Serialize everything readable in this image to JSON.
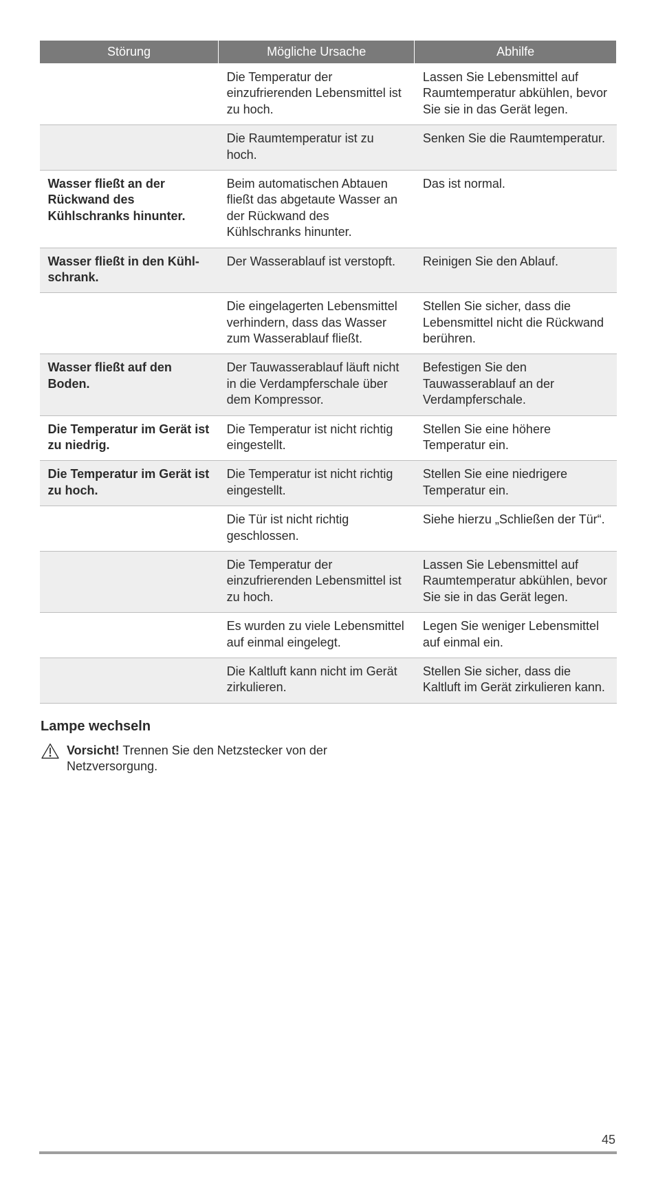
{
  "table": {
    "headers": [
      "Störung",
      "Mögliche Ursache",
      "Abhilfe"
    ],
    "rows": [
      {
        "striped": false,
        "cells": [
          "",
          "Die Temperatur der einzufrierenden Lebensmittel ist zu hoch.",
          "Lassen Sie Lebensmittel auf Raumtem­peratur abkühlen, bevor Sie sie in das Gerät legen."
        ]
      },
      {
        "striped": true,
        "cells": [
          "",
          "Die Raumtemperatur ist zu hoch.",
          "Senken Sie die Raumtemperatur."
        ]
      },
      {
        "striped": false,
        "bold0": true,
        "cells": [
          "Wasser fließt an der Rückwand des Kühlschranks hinunter.",
          "Beim automatischen Abtauen fließt das abgetaute Wasser an der Rückwand des Kühlschranks hinunter.",
          "Das ist normal."
        ]
      },
      {
        "striped": true,
        "bold0": true,
        "cells": [
          "Wasser fließt in den Kühl­schrank.",
          "Der Wasserablauf ist verstopft.",
          "Reinigen Sie den Ablauf."
        ]
      },
      {
        "striped": false,
        "cells": [
          "",
          "Die eingelagerten Lebensmittel verhin­dern, dass das Wasser zum Wasserab­lauf fließt.",
          "Stellen Sie sicher, dass die Lebensmittel nicht die Rückwand berühren."
        ]
      },
      {
        "striped": true,
        "bold0": true,
        "cells": [
          "Wasser fließt auf den Boden.",
          "Der Tauwasserablauf läuft nicht in die Verdampferschale über dem Kompres­sor.",
          "Befestigen Sie den Tauwasserablauf an der Verdampferschale."
        ]
      },
      {
        "striped": false,
        "bold0": true,
        "cells": [
          "Die Temperatur im Gerät ist zu niedrig.",
          "Die Temperatur ist nicht richtig einge­stellt.",
          "Stellen Sie eine höhere Temperatur ein."
        ]
      },
      {
        "striped": true,
        "bold0": true,
        "cells": [
          "Die Temperatur im Gerät ist zu hoch.",
          "Die Temperatur ist nicht richtig einge­stellt.",
          "Stellen Sie eine niedrigere Temperatur ein."
        ]
      },
      {
        "striped": false,
        "cells": [
          "",
          "Die Tür ist nicht richtig geschlossen.",
          "Siehe hierzu „Schließen der Tür“."
        ]
      },
      {
        "striped": true,
        "cells": [
          "",
          "Die Temperatur der einzufrierenden Lebensmittel ist zu hoch.",
          "Lassen Sie Lebensmittel auf Raumtem­peratur abkühlen, bevor Sie sie in das Gerät legen."
        ]
      },
      {
        "striped": false,
        "cells": [
          "",
          "Es wurden zu viele Lebensmittel auf einmal eingelegt.",
          "Legen Sie weniger Lebensmittel auf ein­mal ein."
        ]
      },
      {
        "striped": true,
        "cells": [
          "",
          "Die Kaltluft kann nicht im Gerät zirku­lieren.",
          "Stellen Sie sicher, dass die Kaltluft im Gerät zirkulieren kann."
        ]
      }
    ],
    "col_widths": [
      "31%",
      "34%",
      "35%"
    ],
    "header_bg": "#7a7a7a",
    "header_fg": "#ffffff",
    "stripe_bg": "#eeeeee",
    "border_color": "#bdbdbd",
    "font_size": 18
  },
  "section": {
    "heading": "Lampe wechseln",
    "warning_label": "Vorsicht!",
    "warning_text": " Trennen Sie den Netzstecker von der Netzversorgung."
  },
  "footer": {
    "page_number": "45",
    "rule_color": "#9e9e9e"
  }
}
